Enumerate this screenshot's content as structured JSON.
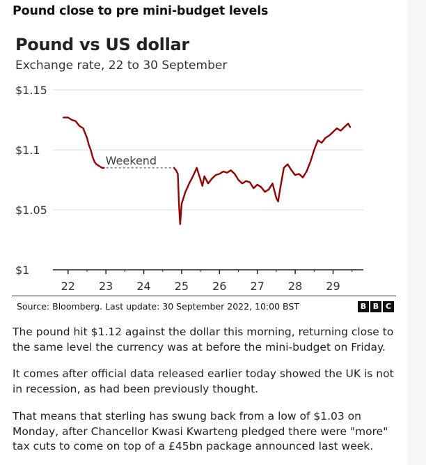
{
  "headline": "Pound close to pre mini-budget levels",
  "chart_data": {
    "type": "line",
    "title": "Pound vs US dollar",
    "subtitle": "Exchange rate, 22 to 30 September",
    "y_ticks": [
      "$1.15",
      "$1.1",
      "$1.05",
      "$1"
    ],
    "y_tick_values": [
      1.15,
      1.1,
      1.05,
      1.0
    ],
    "ylim": [
      1.0,
      1.15
    ],
    "x_tick_labels": [
      "22",
      "23",
      "24",
      "25",
      "26",
      "27",
      "28",
      "29"
    ],
    "x_tick_values": [
      22,
      23,
      24,
      25,
      26,
      27,
      28,
      29
    ],
    "xlim": [
      21.6,
      29.8
    ],
    "grid": "horizontal",
    "line_color": "#990000",
    "annotation": {
      "text": "Weekend",
      "y": 1.085,
      "x_start": 22.9,
      "x_end": 24.8
    },
    "series": [
      {
        "x": [
          21.88,
          22.0,
          22.1,
          22.2,
          22.3,
          22.4,
          22.5,
          22.55,
          22.6,
          22.65,
          22.7,
          22.75,
          22.8,
          22.85,
          22.9,
          22.95,
          24.8,
          24.85,
          24.9,
          24.93,
          24.96,
          25.0,
          25.05,
          25.1,
          25.2,
          25.3,
          25.4,
          25.5,
          25.55,
          25.6,
          25.7,
          25.8,
          25.9,
          26.0,
          26.1,
          26.2,
          26.3,
          26.4,
          26.5,
          26.6,
          26.7,
          26.8,
          26.9,
          27.0,
          27.1,
          27.2,
          27.3,
          27.4,
          27.5,
          27.55,
          27.6,
          27.7,
          27.8,
          27.9,
          28.0,
          28.1,
          28.2,
          28.3,
          28.4,
          28.5,
          28.6,
          28.7,
          28.8,
          28.9,
          29.0,
          29.1,
          29.2,
          29.3,
          29.4,
          29.45
        ],
        "y": [
          1.127,
          1.127,
          1.125,
          1.124,
          1.12,
          1.118,
          1.11,
          1.104,
          1.1,
          1.094,
          1.09,
          1.088,
          1.087,
          1.086,
          1.085,
          1.085,
          1.085,
          1.083,
          1.08,
          1.055,
          1.038,
          1.055,
          1.06,
          1.065,
          1.072,
          1.078,
          1.085,
          1.075,
          1.07,
          1.078,
          1.072,
          1.076,
          1.079,
          1.08,
          1.082,
          1.081,
          1.083,
          1.08,
          1.075,
          1.072,
          1.074,
          1.073,
          1.068,
          1.071,
          1.069,
          1.065,
          1.067,
          1.072,
          1.06,
          1.057,
          1.067,
          1.085,
          1.088,
          1.083,
          1.079,
          1.08,
          1.077,
          1.082,
          1.09,
          1.1,
          1.108,
          1.106,
          1.11,
          1.112,
          1.115,
          1.118,
          1.116,
          1.119,
          1.122,
          1.119
        ]
      }
    ]
  },
  "source": "Source: Bloomberg. Last update: 30 September 2022, 10:00 BST",
  "logo_letters": [
    "B",
    "B",
    "C"
  ],
  "logo_overlay": "BBC",
  "paragraphs": [
    "The pound hit $1.12 against the dollar this morning, returning close to the same level the currency was at before the mini-budget on Friday.",
    "It comes after official data released earlier today showed the UK is not in recession, as had been previously thought.",
    "That means that sterling has swung back from a low of $1.03 on Monday, after Chancellor Kwasi Kwarteng pledged there were \"more\" tax cuts to come on top of a £45bn package announced last week."
  ]
}
